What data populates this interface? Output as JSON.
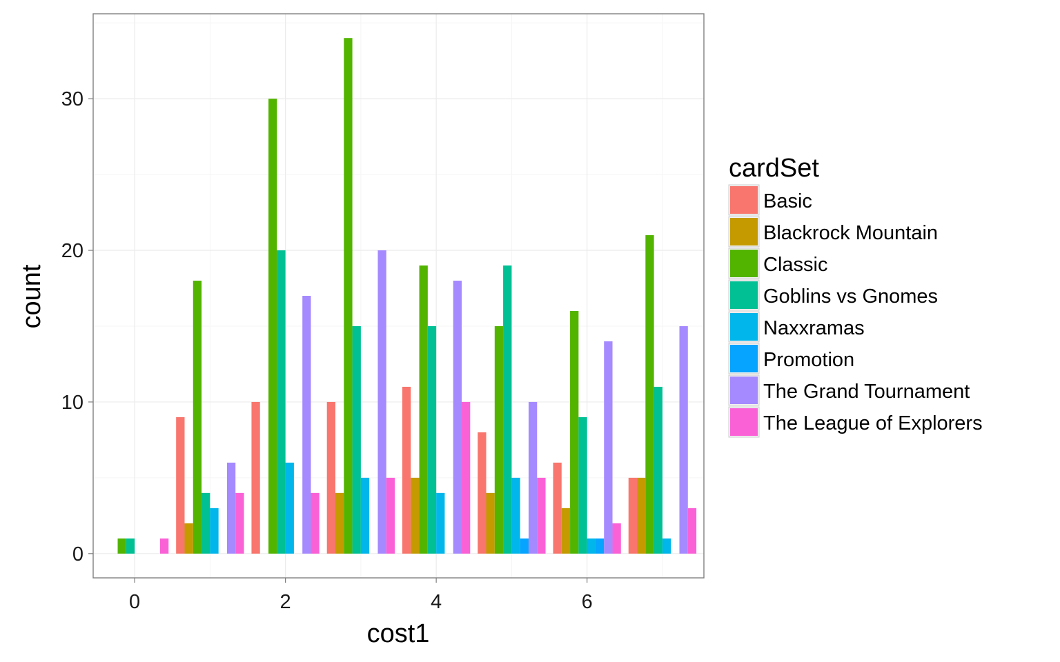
{
  "chart_data": {
    "type": "bar",
    "xlabel": "cost1",
    "ylabel": "count",
    "legend_title": "cardSet",
    "legend_position": "right",
    "grid": true,
    "xlim": [
      -0.55,
      7.55
    ],
    "ylim": [
      -1.6,
      35.6
    ],
    "x_ticks": [
      0,
      2,
      4,
      6
    ],
    "y_ticks": [
      0,
      10,
      20,
      30
    ],
    "x": [
      0,
      1,
      2,
      3,
      4,
      5,
      6,
      7
    ],
    "series": [
      {
        "name": "Basic",
        "color": "#F8766D",
        "values": [
          0,
          9,
          10,
          10,
          11,
          8,
          6,
          5
        ]
      },
      {
        "name": "Blackrock Mountain",
        "color": "#C49A00",
        "values": [
          0,
          2,
          0,
          4,
          5,
          4,
          3,
          5
        ]
      },
      {
        "name": "Classic",
        "color": "#53B400",
        "values": [
          1,
          18,
          30,
          34,
          19,
          15,
          16,
          21
        ]
      },
      {
        "name": "Goblins vs Gnomes",
        "color": "#00C094",
        "values": [
          1,
          4,
          20,
          15,
          15,
          19,
          9,
          11
        ]
      },
      {
        "name": "Naxxramas",
        "color": "#00B6EB",
        "values": [
          0,
          3,
          6,
          5,
          4,
          5,
          1,
          1
        ]
      },
      {
        "name": "Promotion",
        "color": "#06A4FF",
        "values": [
          0,
          0,
          0,
          0,
          0,
          1,
          1,
          0
        ]
      },
      {
        "name": "The Grand Tournament",
        "color": "#A58AFF",
        "values": [
          0,
          6,
          17,
          20,
          18,
          10,
          14,
          15
        ]
      },
      {
        "name": "The League of Explorers",
        "color": "#FB61D7",
        "values": [
          1,
          4,
          4,
          5,
          10,
          5,
          2,
          3
        ]
      }
    ]
  }
}
